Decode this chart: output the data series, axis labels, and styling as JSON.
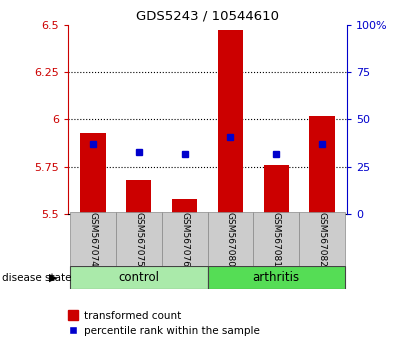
{
  "title": "GDS5243 / 10544610",
  "samples": [
    "GSM567074",
    "GSM567075",
    "GSM567076",
    "GSM567080",
    "GSM567081",
    "GSM567082"
  ],
  "bar_values": [
    5.93,
    5.68,
    5.58,
    6.47,
    5.76,
    6.02
  ],
  "bar_bottom": 5.5,
  "blue_dot_values": [
    5.87,
    5.83,
    5.82,
    5.91,
    5.82,
    5.87
  ],
  "ylim": [
    5.5,
    6.5
  ],
  "y_ticks": [
    5.5,
    5.75,
    6.0,
    6.25,
    6.5
  ],
  "y_tick_labels": [
    "5.5",
    "5.75",
    "6",
    "6.25",
    "6.5"
  ],
  "y2_ticks": [
    0,
    25,
    50,
    75,
    100
  ],
  "y2_tick_labels": [
    "0",
    "25",
    "50",
    "75",
    "100%"
  ],
  "dotted_lines": [
    5.75,
    6.0,
    6.25
  ],
  "bar_color": "#cc0000",
  "blue_color": "#0000cc",
  "group_labels": [
    "control",
    "arthritis"
  ],
  "group_colors": [
    "#aaeaaa",
    "#55dd55"
  ],
  "disease_label": "disease state",
  "legend_items": [
    "transformed count",
    "percentile rank within the sample"
  ],
  "bar_color_legend": "#cc0000",
  "blue_color_legend": "#0000cc",
  "bar_width": 0.55
}
